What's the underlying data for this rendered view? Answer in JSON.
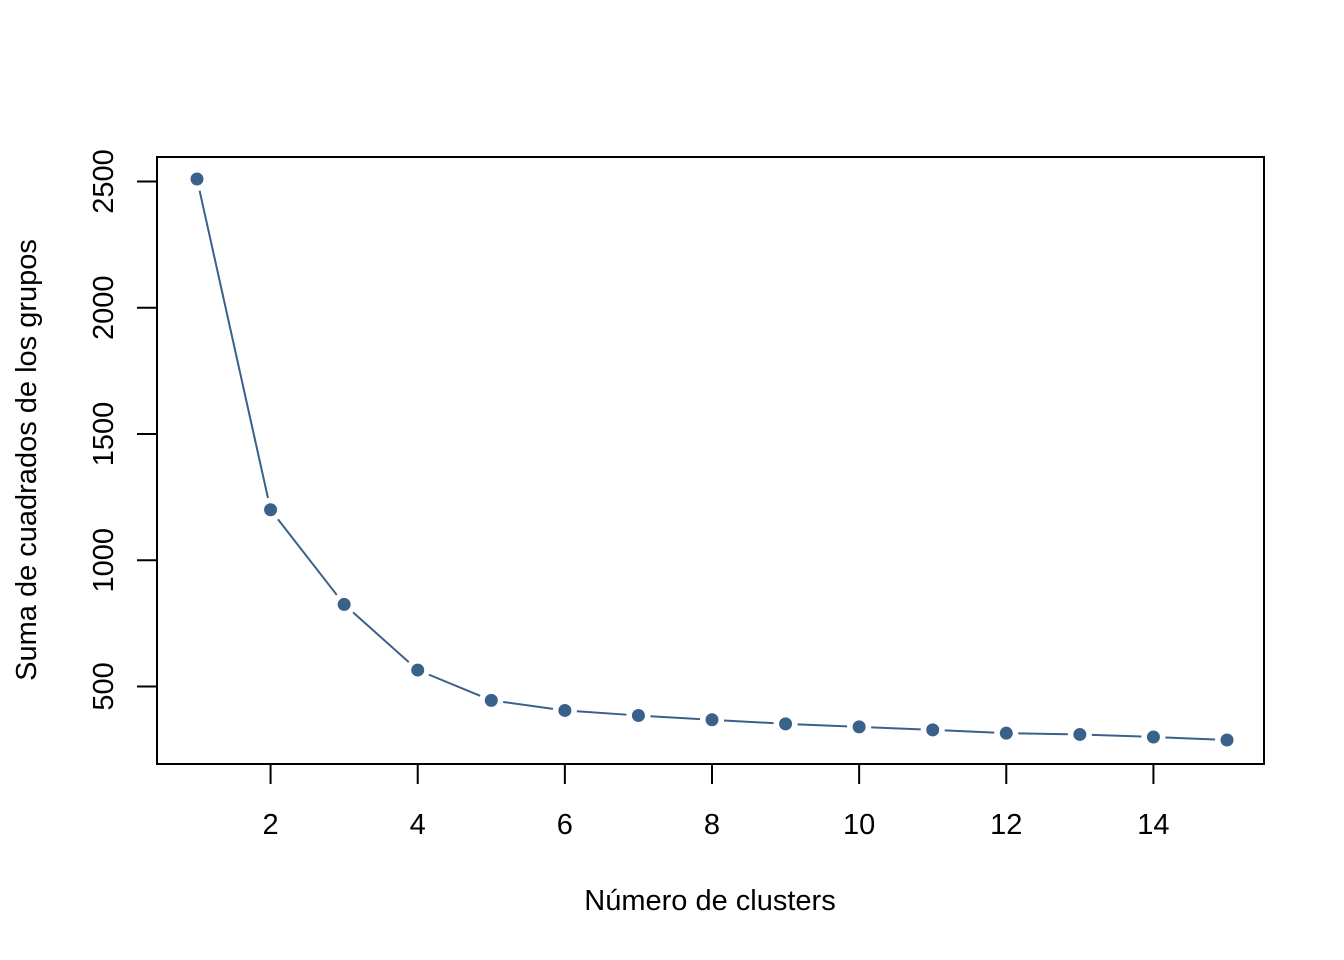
{
  "chart_data": {
    "type": "line",
    "title": "",
    "xlabel": "Número de clusters",
    "ylabel": "Suma de cuadrados de los grupos",
    "x": [
      1,
      2,
      3,
      4,
      5,
      6,
      7,
      8,
      9,
      10,
      11,
      12,
      13,
      14,
      15
    ],
    "series": [
      {
        "values": [
          2510,
          1200,
          825,
          565,
          445,
          405,
          385,
          368,
          352,
          340,
          328,
          315,
          310,
          300,
          288
        ]
      }
    ],
    "x_ticks": [
      2,
      4,
      6,
      8,
      10,
      12,
      14
    ],
    "y_ticks": [
      500,
      1000,
      1500,
      2000,
      2500
    ],
    "color": "#3a6189",
    "grid": false,
    "legend": "none"
  }
}
